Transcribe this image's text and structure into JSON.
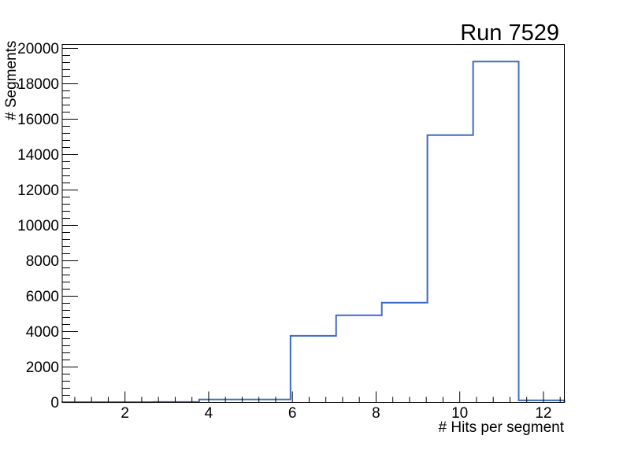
{
  "chart_data": {
    "type": "line",
    "subtype": "step-histogram",
    "title": "Run 7529",
    "xlabel": "# Hits per segment",
    "ylabel": "# Segments",
    "xlim": [
      0.5,
      12.5
    ],
    "ylim": [
      0,
      20223
    ],
    "x_ticks": [
      2,
      4,
      6,
      8,
      10,
      12
    ],
    "y_ticks": [
      0,
      2000,
      4000,
      6000,
      8000,
      10000,
      12000,
      14000,
      16000,
      18000,
      20000
    ],
    "x_minor_step": 0.4,
    "y_minor_step": 400,
    "bin_edges": [
      0.5,
      1.591,
      2.682,
      3.773,
      4.864,
      5.955,
      7.045,
      8.136,
      9.227,
      10.318,
      11.409,
      12.5
    ],
    "values": [
      20,
      20,
      25,
      165,
      165,
      3760,
      4920,
      5630,
      15100,
      19260,
      115
    ],
    "grid": false,
    "legend_position": "none",
    "line_color": "#3c6bc5",
    "axis_color": "#000000",
    "background_color": "#ffffff"
  }
}
